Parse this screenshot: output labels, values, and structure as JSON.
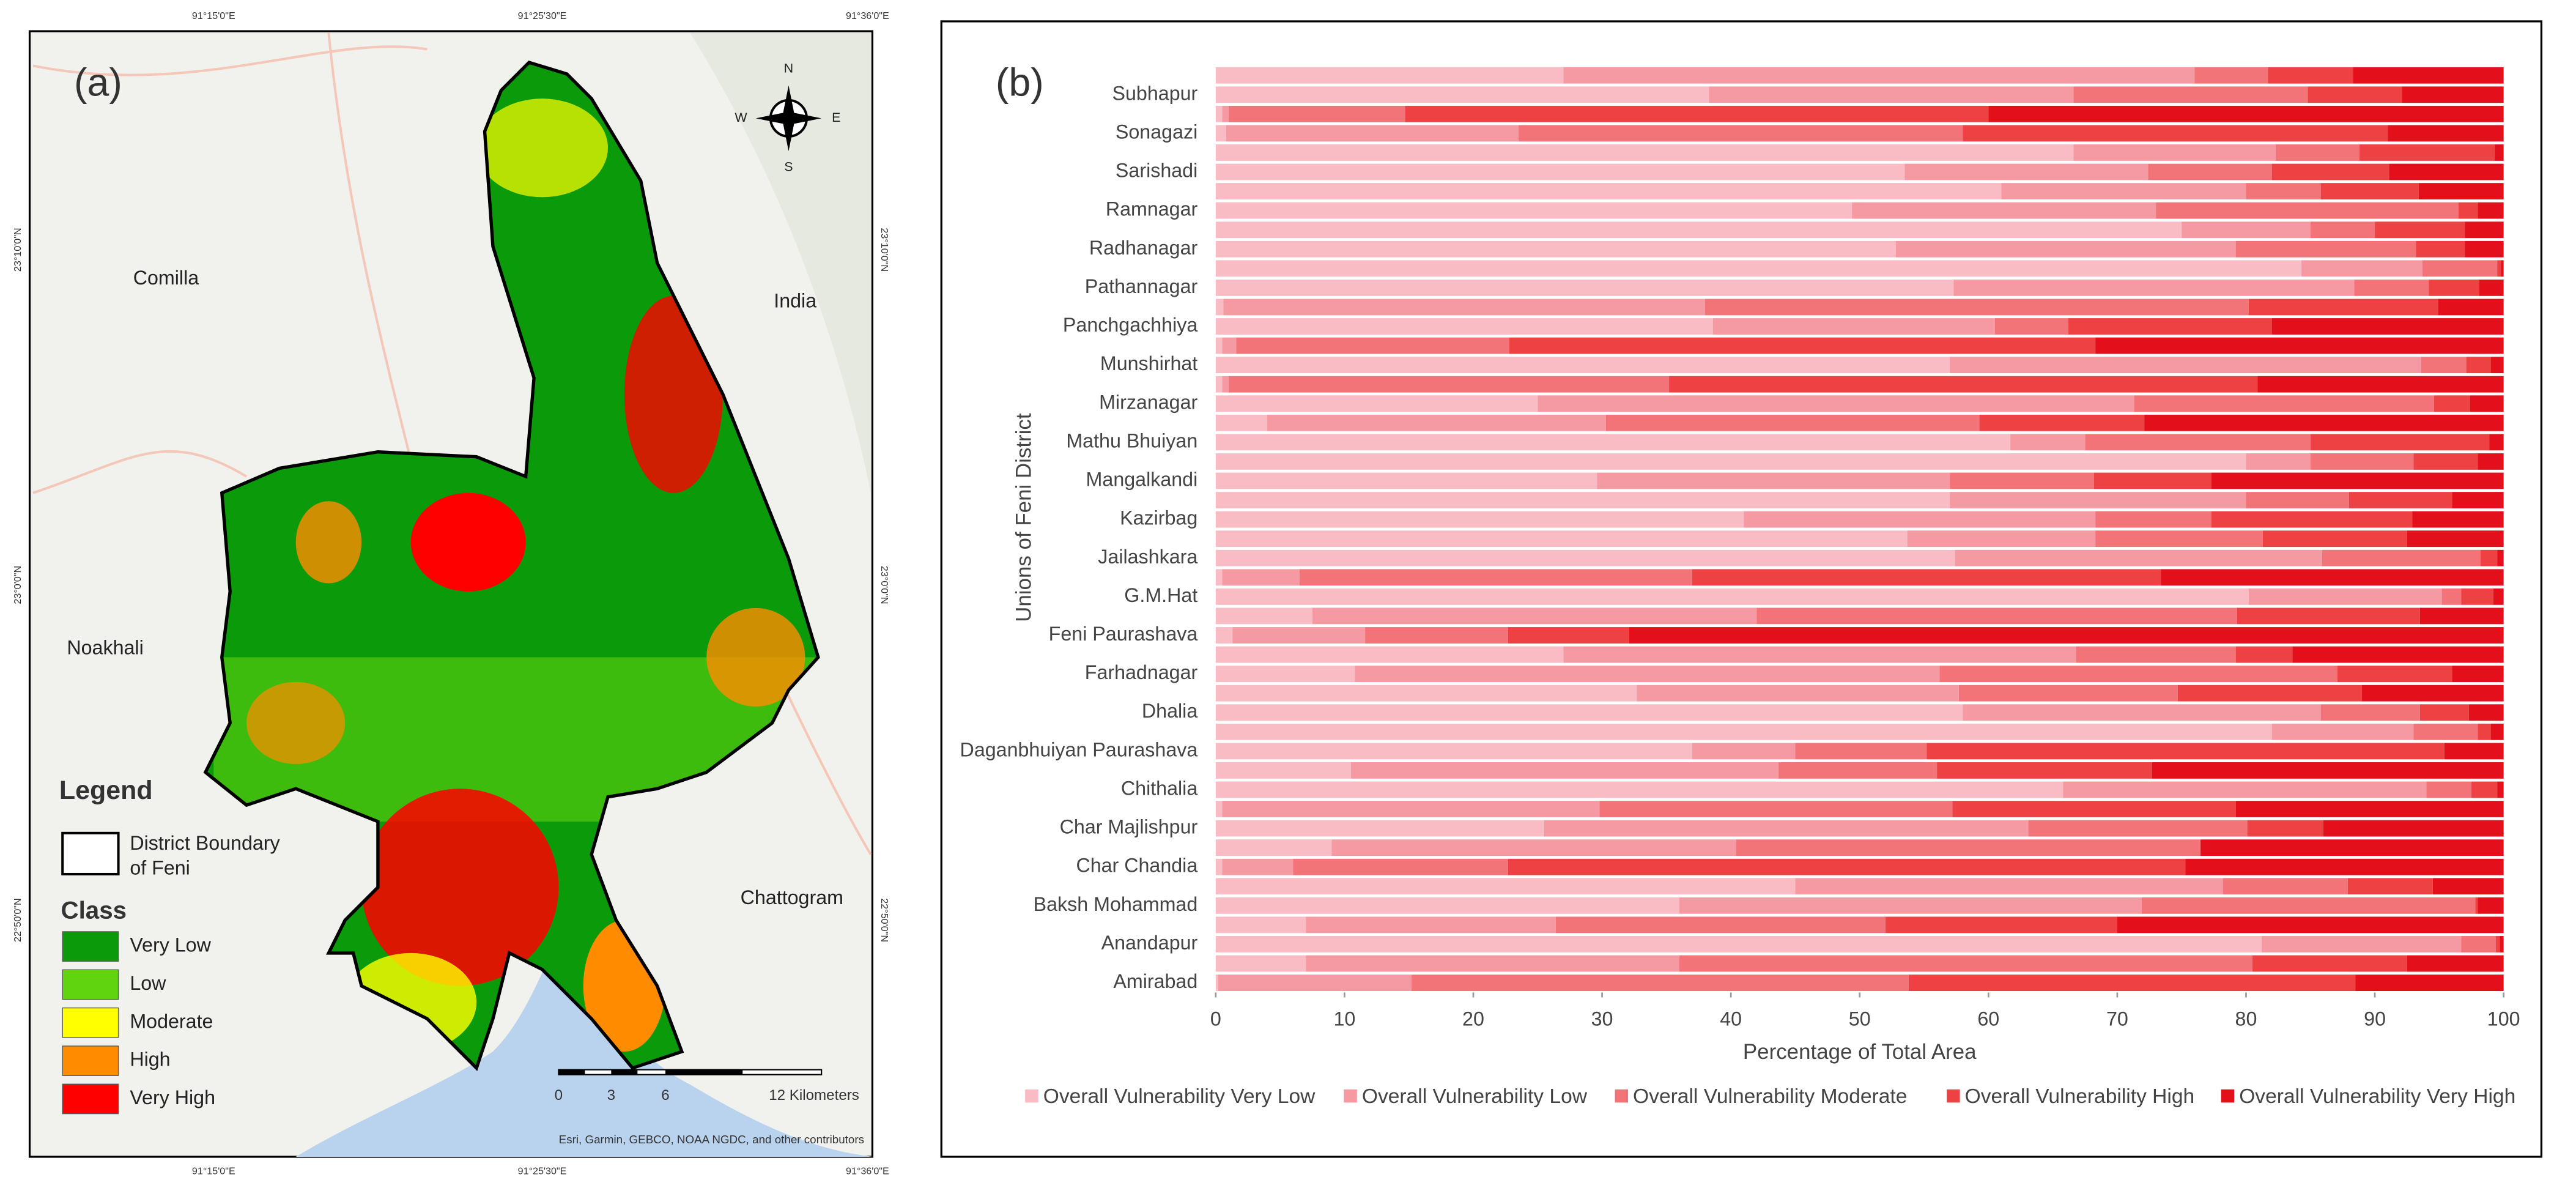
{
  "map": {
    "panel_label": "(a)",
    "top_coords": [
      "91°15'0\"E",
      "91°25'30\"E",
      "91°36'0\"E"
    ],
    "bottom_coords": [
      "91°15'0\"E",
      "91°25'30\"E",
      "91°36'0\"E"
    ],
    "left_coords": [
      "23°10'0\"N",
      "23°0'0\"N",
      "22°50'0\"N"
    ],
    "right_coords": [
      "23°10'0\"N",
      "23°0'0\"N",
      "22°50'0\"N"
    ],
    "places": [
      "Comilla",
      "India",
      "Noakhali",
      "Chattogram"
    ],
    "compass": [
      "N",
      "S",
      "W",
      "E"
    ],
    "legend_title": "Legend",
    "boundary_label": [
      "District Boundary",
      "of Feni"
    ],
    "class_title": "Class",
    "classes": [
      {
        "name": "Very Low",
        "color": "#0a9a0a"
      },
      {
        "name": "Low",
        "color": "#5fd40f"
      },
      {
        "name": "Moderate",
        "color": "#ffff00"
      },
      {
        "name": "High",
        "color": "#ff8c00"
      },
      {
        "name": "Very High",
        "color": "#ff0000"
      }
    ],
    "scale_labels": [
      "0",
      "3",
      "6",
      "12 Kilometers"
    ],
    "attribution": "Esri, Garmin, GEBCO, NOAA NGDC, and other contributors"
  },
  "chart_data": {
    "type": "bar",
    "orientation": "horizontal",
    "stacked": true,
    "panel_label": "(b)",
    "y_label": "Unions of Feni District",
    "x_label": "Percentage of Total Area",
    "categories": [
      null,
      "Subhapur",
      null,
      "Sonagazi",
      null,
      "Sarishadi",
      null,
      "Ramnagar",
      null,
      "Radhanagar",
      null,
      "Pathannagar",
      null,
      "Panchgachhiya",
      null,
      "Munshirhat",
      null,
      "Mirzanagar",
      null,
      "Mathu Bhuiyan",
      null,
      "Mangalkandi",
      null,
      "Kazirbag",
      null,
      "Jailashkara",
      null,
      "G.M.Hat",
      null,
      "Feni Paurashava",
      null,
      "Farhadnagar",
      null,
      "Dhalia",
      null,
      "Daganbhuiyan Paurashava",
      null,
      "Chithalia",
      null,
      "Char Majlishpur",
      null,
      "Char Chandia",
      null,
      "Baksh Mohammad",
      null,
      "Anandapur",
      null,
      "Amirabad"
    ],
    "series": [
      {
        "name": "Overall Vulnerability Very Low",
        "color": "#f9bcc4",
        "values": [
          27,
          38.3,
          0.5,
          0.8,
          66.6,
          53.5,
          61,
          49.4,
          75,
          52.8,
          84.3,
          57.3,
          0.6,
          38.6,
          0.5,
          57,
          0.5,
          25,
          4,
          61.7,
          80,
          29.6,
          57,
          41,
          53.7,
          57.4,
          0.5,
          80.2,
          7.5,
          1.3,
          27,
          10.8,
          32.7,
          58,
          82,
          37,
          10.5,
          65.8,
          0.5,
          25.5,
          9,
          0.5,
          45,
          36,
          7,
          81.2,
          7,
          0.2
        ]
      },
      {
        "name": "Overall Vulnerability Low",
        "color": "#f59aa2",
        "values": [
          49,
          28.3,
          0.5,
          22.7,
          15.7,
          18.9,
          19,
          23.6,
          10,
          26.4,
          9.4,
          31.1,
          37.4,
          21.9,
          1.1,
          36.6,
          0.5,
          46.3,
          26.3,
          5.8,
          5,
          27.4,
          23,
          27.3,
          14.6,
          28.5,
          6,
          15,
          34.5,
          10.3,
          39.8,
          45.4,
          25,
          27.8,
          11,
          8,
          33.2,
          28.2,
          29.3,
          37.6,
          31.4,
          5.5,
          33.2,
          35.9,
          19.4,
          15.5,
          29,
          15
        ]
      },
      {
        "name": "Overall Vulnerability Moderate",
        "color": "#f27479",
        "values": [
          5.7,
          18.2,
          13.7,
          34.5,
          6.5,
          9.6,
          5.8,
          23.5,
          5,
          14,
          5.8,
          5.8,
          42.2,
          5.7,
          21.2,
          3.5,
          34.2,
          23.3,
          29,
          17.5,
          8,
          11.2,
          8,
          9,
          13,
          12.3,
          30.5,
          1.5,
          37.3,
          11.1,
          12.4,
          30.9,
          17,
          7.7,
          5,
          10.2,
          12.3,
          3.5,
          27.4,
          17,
          36,
          16.7,
          9.7,
          25.9,
          25.6,
          2.7,
          44.5,
          38.6
        ]
      },
      {
        "name": "Overall Vulnerability High",
        "color": "#ee4144",
        "values": [
          6.6,
          7.3,
          45.3,
          33,
          10.5,
          9.1,
          7.6,
          1.5,
          7,
          3.8,
          0.3,
          3.9,
          14.7,
          15.8,
          45.5,
          1.9,
          45.7,
          2.8,
          12.8,
          13.9,
          5,
          9.1,
          8,
          15.6,
          11.2,
          1.3,
          36.4,
          2.5,
          14.2,
          9.4,
          4.4,
          8.9,
          14.3,
          3.8,
          1,
          40.2,
          16.7,
          2,
          22,
          5.9,
          0.1,
          52.6,
          6.6,
          0.2,
          18,
          0.3,
          12,
          34.7
        ]
      },
      {
        "name": "Overall Vulnerability Very High",
        "color": "#e3101c",
        "values": [
          11.7,
          7.9,
          40,
          9,
          0.7,
          8.9,
          6.6,
          2,
          3,
          3,
          0.2,
          1.9,
          5.1,
          18,
          31.7,
          1,
          19.1,
          2.6,
          27.9,
          1.1,
          2,
          22.7,
          4,
          7.1,
          7.5,
          0.5,
          26.6,
          0.8,
          6.5,
          67.9,
          16.4,
          4,
          11,
          2.7,
          1,
          4.6,
          27.3,
          0.5,
          20.8,
          14,
          23.5,
          24.7,
          5.5,
          2,
          30,
          0.3,
          7.5,
          11.5
        ]
      }
    ],
    "xlim": [
      0,
      100
    ],
    "xticks": [
      0,
      10,
      20,
      30,
      40,
      50,
      60,
      70,
      80,
      90,
      100
    ],
    "legend": "bottom"
  }
}
